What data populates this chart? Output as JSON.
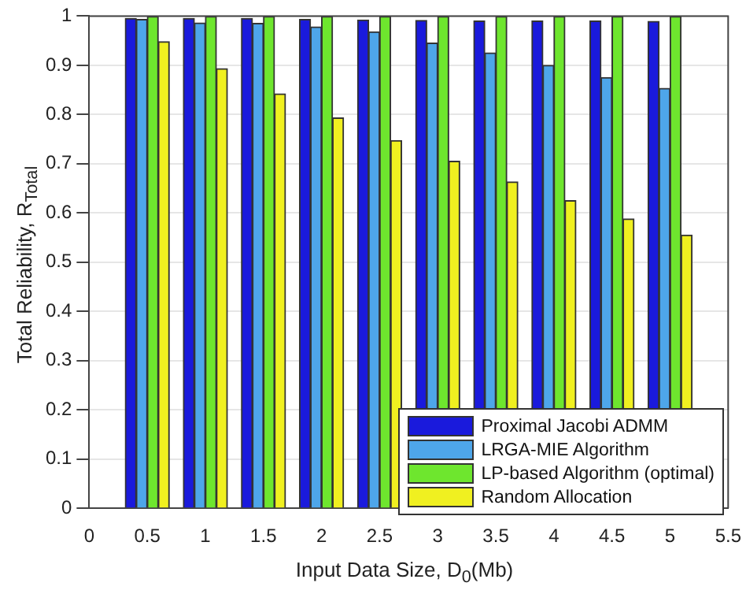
{
  "chart_data": {
    "type": "bar",
    "xlabel": "Input Data Size, D$_{0}$(Mb)",
    "ylabel": "Total Reliability, R$_{Total}$",
    "x": [
      0.5,
      1,
      1.5,
      2,
      2.5,
      3,
      3.5,
      4,
      4.5,
      5
    ],
    "series": [
      {
        "name": "Proximal Jacobi ADMM",
        "color": "#1a1adc",
        "values": [
          0.995,
          0.995,
          0.995,
          0.993,
          0.992,
          0.991,
          0.99,
          0.99,
          0.99,
          0.989
        ]
      },
      {
        "name": "LRGA-MIE Algorithm",
        "color": "#4ea6ea",
        "values": [
          0.993,
          0.986,
          0.985,
          0.978,
          0.968,
          0.945,
          0.925,
          0.9,
          0.875,
          0.853
        ]
      },
      {
        "name": "LP-based Algorithm (optimal)",
        "color": "#6ee62e",
        "values": [
          0.999,
          0.999,
          0.999,
          0.999,
          0.999,
          0.999,
          0.999,
          0.999,
          0.999,
          0.999
        ]
      },
      {
        "name": "Random Allocation",
        "color": "#f0f020",
        "values": [
          0.948,
          0.893,
          0.842,
          0.793,
          0.747,
          0.705,
          0.663,
          0.625,
          0.588,
          0.555
        ]
      }
    ],
    "xlim": [
      0,
      5.5
    ],
    "xticks": [
      0,
      0.5,
      1,
      1.5,
      2,
      2.5,
      3,
      3.5,
      4,
      4.5,
      5,
      5.5
    ],
    "ylim": [
      0,
      1
    ],
    "yticks": [
      0,
      0.1,
      0.2,
      0.3,
      0.4,
      0.5,
      0.6,
      0.7,
      0.8,
      0.9,
      1
    ],
    "grid": "y",
    "legend": "bottom right"
  }
}
